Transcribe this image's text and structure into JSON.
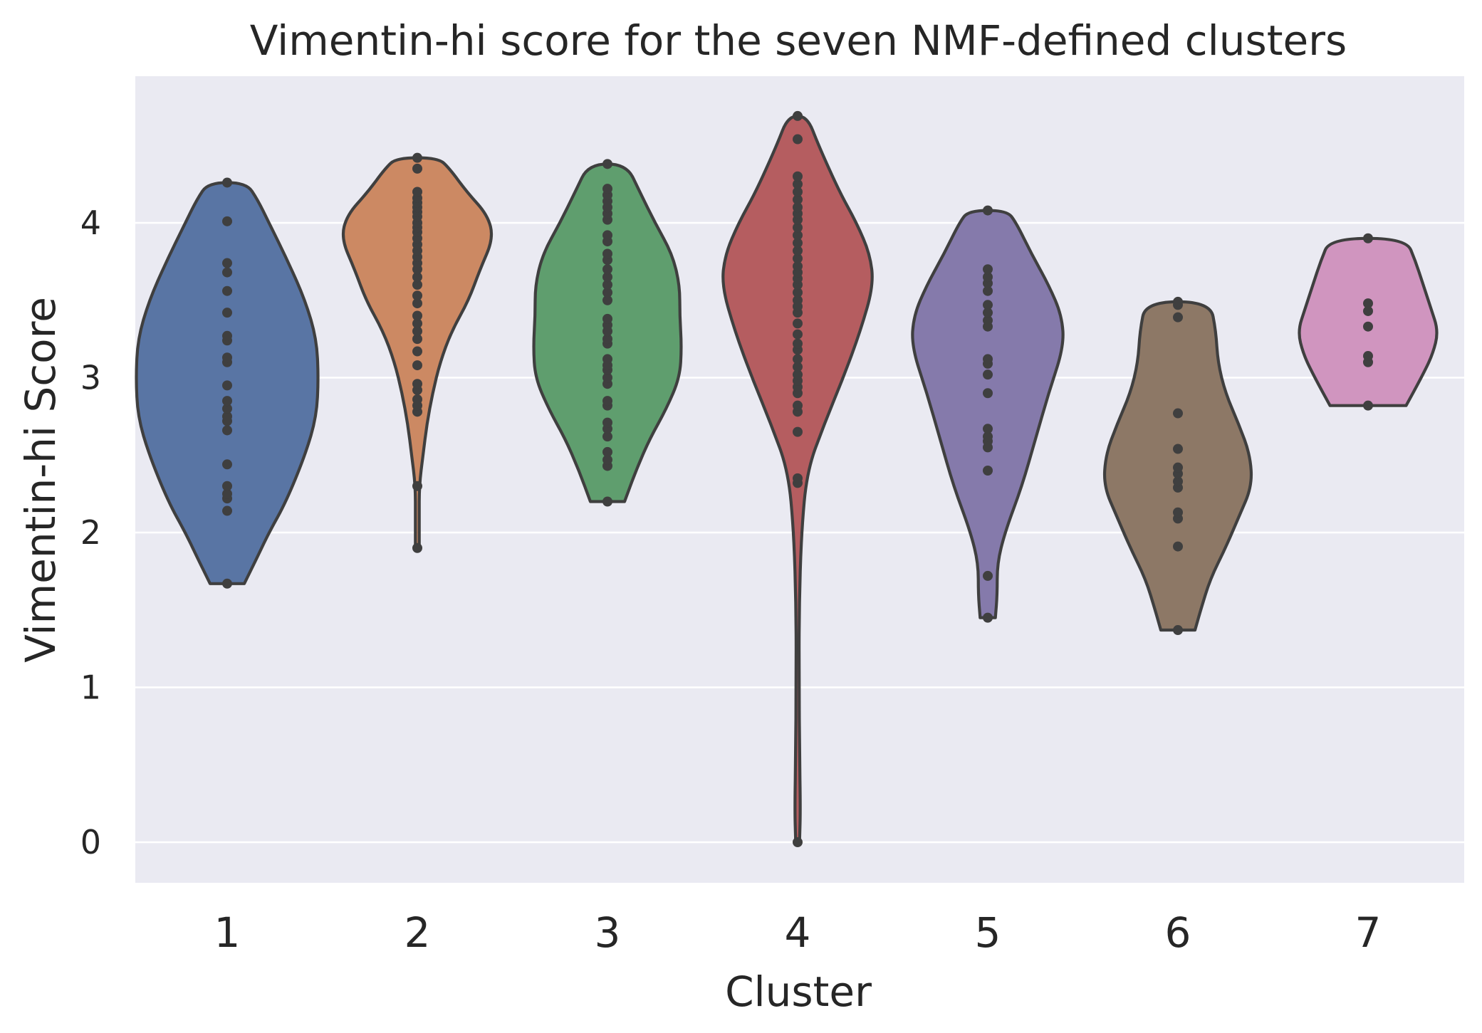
{
  "chart_data": {
    "type": "violin",
    "title": "Vimentin-hi score for the seven NMF-defined clusters",
    "xlabel": "Cluster",
    "ylabel": "Vimentin-hi Score",
    "categories": [
      "1",
      "2",
      "3",
      "4",
      "5",
      "6",
      "7"
    ],
    "ylim": [
      -0.27,
      4.95
    ],
    "yticks": [
      0,
      1,
      2,
      3,
      4
    ],
    "grid": true,
    "background": "#eaeaf2",
    "grid_color": "#ffffff",
    "outline_color": "#3f3f3f",
    "point_color": "#3f3f3f",
    "colors": [
      "#5975a4",
      "#cc8963",
      "#5f9e6e",
      "#b55d60",
      "#857aab",
      "#8d7866",
      "#d095bf"
    ],
    "series": [
      {
        "category": "1",
        "min": 1.67,
        "max": 4.26,
        "profile": [
          [
            1.67,
            0.09
          ],
          [
            1.72,
            0.11
          ],
          [
            1.82,
            0.15
          ],
          [
            2.0,
            0.22
          ],
          [
            2.2,
            0.31
          ],
          [
            2.5,
            0.41
          ],
          [
            2.75,
            0.47
          ],
          [
            3.0,
            0.48
          ],
          [
            3.25,
            0.47
          ],
          [
            3.5,
            0.41
          ],
          [
            3.75,
            0.32
          ],
          [
            4.0,
            0.22
          ],
          [
            4.15,
            0.16
          ],
          [
            4.26,
            0.1
          ]
        ],
        "points": [
          1.67,
          2.14,
          2.22,
          2.25,
          2.3,
          2.44,
          2.66,
          2.72,
          2.75,
          2.8,
          2.85,
          2.95,
          3.1,
          3.13,
          3.24,
          3.27,
          3.42,
          3.56,
          3.68,
          3.74,
          4.01,
          4.26
        ]
      },
      {
        "category": "2",
        "min": 1.9,
        "max": 4.42,
        "profile": [
          [
            1.9,
            0.01
          ],
          [
            2.1,
            0.01
          ],
          [
            2.3,
            0.01
          ],
          [
            2.5,
            0.03
          ],
          [
            2.7,
            0.05
          ],
          [
            2.9,
            0.08
          ],
          [
            3.1,
            0.12
          ],
          [
            3.3,
            0.18
          ],
          [
            3.5,
            0.27
          ],
          [
            3.7,
            0.33
          ],
          [
            3.9,
            0.4
          ],
          [
            4.05,
            0.37
          ],
          [
            4.2,
            0.26
          ],
          [
            4.35,
            0.17
          ],
          [
            4.42,
            0.11
          ]
        ],
        "points": [
          1.9,
          2.3,
          2.78,
          2.82,
          2.86,
          2.92,
          2.96,
          3.08,
          3.17,
          3.25,
          3.3,
          3.35,
          3.4,
          3.48,
          3.53,
          3.6,
          3.65,
          3.7,
          3.74,
          3.78,
          3.82,
          3.86,
          3.9,
          3.94,
          3.97,
          4.0,
          4.04,
          4.07,
          4.1,
          4.13,
          4.16,
          4.2,
          4.35,
          4.42
        ]
      },
      {
        "category": "3",
        "min": 2.2,
        "max": 4.38,
        "profile": [
          [
            2.2,
            0.09
          ],
          [
            2.4,
            0.15
          ],
          [
            2.6,
            0.22
          ],
          [
            2.8,
            0.31
          ],
          [
            3.0,
            0.38
          ],
          [
            3.2,
            0.39
          ],
          [
            3.4,
            0.38
          ],
          [
            3.6,
            0.38
          ],
          [
            3.8,
            0.34
          ],
          [
            4.0,
            0.25
          ],
          [
            4.2,
            0.17
          ],
          [
            4.38,
            0.1
          ]
        ],
        "points": [
          2.2,
          2.43,
          2.47,
          2.52,
          2.62,
          2.67,
          2.71,
          2.82,
          2.85,
          2.96,
          3.0,
          3.05,
          3.08,
          3.12,
          3.22,
          3.25,
          3.3,
          3.34,
          3.38,
          3.5,
          3.55,
          3.6,
          3.65,
          3.7,
          3.76,
          3.8,
          3.88,
          3.92,
          4.02,
          4.06,
          4.1,
          4.14,
          4.18,
          4.22,
          4.38
        ]
      },
      {
        "category": "4",
        "min": 0.0,
        "max": 4.69,
        "profile": [
          [
            0.0,
            0.01
          ],
          [
            0.2,
            0.015
          ],
          [
            0.6,
            0.01
          ],
          [
            1.0,
            0.008
          ],
          [
            1.5,
            0.008
          ],
          [
            2.0,
            0.02
          ],
          [
            2.4,
            0.05
          ],
          [
            2.7,
            0.14
          ],
          [
            3.0,
            0.24
          ],
          [
            3.3,
            0.33
          ],
          [
            3.6,
            0.4
          ],
          [
            3.8,
            0.38
          ],
          [
            4.0,
            0.31
          ],
          [
            4.2,
            0.22
          ],
          [
            4.5,
            0.11
          ],
          [
            4.69,
            0.05
          ]
        ],
        "points": [
          0.0,
          2.32,
          2.35,
          2.65,
          2.78,
          2.82,
          2.9,
          2.94,
          2.98,
          3.02,
          3.07,
          3.12,
          3.18,
          3.22,
          3.28,
          3.35,
          3.42,
          3.46,
          3.5,
          3.55,
          3.6,
          3.64,
          3.68,
          3.72,
          3.77,
          3.82,
          3.87,
          3.92,
          3.97,
          4.02,
          4.06,
          4.1,
          4.15,
          4.2,
          4.25,
          4.3,
          4.54,
          4.69
        ]
      },
      {
        "category": "5",
        "min": 1.45,
        "max": 4.08,
        "profile": [
          [
            1.45,
            0.04
          ],
          [
            1.6,
            0.05
          ],
          [
            1.8,
            0.05
          ],
          [
            2.0,
            0.09
          ],
          [
            2.3,
            0.18
          ],
          [
            2.6,
            0.25
          ],
          [
            2.9,
            0.32
          ],
          [
            3.2,
            0.4
          ],
          [
            3.4,
            0.39
          ],
          [
            3.6,
            0.32
          ],
          [
            3.8,
            0.23
          ],
          [
            4.0,
            0.15
          ],
          [
            4.08,
            0.1
          ]
        ],
        "points": [
          1.45,
          1.72,
          2.4,
          2.55,
          2.59,
          2.62,
          2.67,
          2.9,
          3.02,
          3.09,
          3.12,
          3.33,
          3.37,
          3.42,
          3.47,
          3.56,
          3.61,
          3.65,
          3.7,
          4.08
        ]
      },
      {
        "category": "6",
        "min": 1.37,
        "max": 3.49,
        "profile": [
          [
            1.37,
            0.09
          ],
          [
            1.5,
            0.12
          ],
          [
            1.7,
            0.17
          ],
          [
            1.9,
            0.25
          ],
          [
            2.1,
            0.32
          ],
          [
            2.3,
            0.39
          ],
          [
            2.5,
            0.38
          ],
          [
            2.7,
            0.32
          ],
          [
            2.9,
            0.25
          ],
          [
            3.1,
            0.21
          ],
          [
            3.3,
            0.2
          ],
          [
            3.49,
            0.17
          ]
        ],
        "points": [
          1.37,
          1.91,
          2.09,
          2.13,
          2.29,
          2.33,
          2.38,
          2.42,
          2.54,
          2.77,
          3.39,
          3.47,
          3.49
        ]
      },
      {
        "category": "7",
        "min": 2.82,
        "max": 3.9,
        "profile": [
          [
            2.82,
            0.2
          ],
          [
            3.0,
            0.28
          ],
          [
            3.15,
            0.34
          ],
          [
            3.3,
            0.37
          ],
          [
            3.45,
            0.33
          ],
          [
            3.6,
            0.29
          ],
          [
            3.75,
            0.25
          ],
          [
            3.9,
            0.2
          ]
        ],
        "points": [
          2.82,
          3.1,
          3.14,
          3.33,
          3.43,
          3.48,
          3.9
        ]
      }
    ]
  }
}
